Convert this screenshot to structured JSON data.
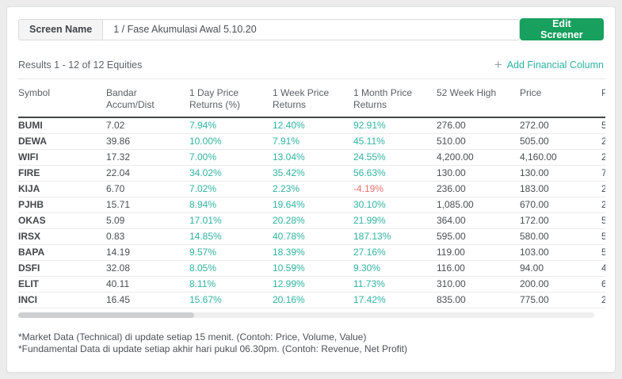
{
  "screener": {
    "label": "Screen Name",
    "value": "1 / Fase Akumulasi Awal 5.10.20",
    "edit_button_label": "Edit Screener"
  },
  "results": {
    "summary": "Results 1 - 12 of 12 Equities",
    "add_column_icon": "+",
    "add_column_label": "Add Financial Column"
  },
  "table": {
    "columns": [
      "Symbol",
      "Bandar Accum/Dist",
      "1 Day Price Returns (%)",
      "1 Week Price Returns",
      "1 Month Price Returns",
      "52 Week High",
      "Price",
      "P"
    ],
    "rows": [
      [
        "BUMI",
        "7.02",
        "7.94%",
        "12.40%",
        "92.91%",
        "276.00",
        "272.00",
        "5"
      ],
      [
        "DEWA",
        "39.86",
        "10.00%",
        "7.91%",
        "45.11%",
        "510.00",
        "505.00",
        "2"
      ],
      [
        "WIFI",
        "17.32",
        "7.00%",
        "13.04%",
        "24.55%",
        "4,200.00",
        "4,160.00",
        "2"
      ],
      [
        "FIRE",
        "22.04",
        "34.02%",
        "35.42%",
        "56.63%",
        "130.00",
        "130.00",
        "7"
      ],
      [
        "KIJA",
        "6.70",
        "7.02%",
        "2.23%",
        "-4.19%",
        "236.00",
        "183.00",
        "2"
      ],
      [
        "PJHB",
        "15.71",
        "8.94%",
        "19.64%",
        "30.10%",
        "1,085.00",
        "670.00",
        "2"
      ],
      [
        "OKAS",
        "5.09",
        "17.01%",
        "20.28%",
        "21.99%",
        "364.00",
        "172.00",
        "5"
      ],
      [
        "IRSX",
        "0.83",
        "14.85%",
        "40.78%",
        "187.13%",
        "595.00",
        "580.00",
        "5"
      ],
      [
        "BAPA",
        "14.19",
        "9.57%",
        "18.39%",
        "27.16%",
        "119.00",
        "103.00",
        "5"
      ],
      [
        "DSFI",
        "32.08",
        "8.05%",
        "10.59%",
        "9.30%",
        "116.00",
        "94.00",
        "4"
      ],
      [
        "ELIT",
        "40.11",
        "8.11%",
        "12.99%",
        "11.73%",
        "310.00",
        "200.00",
        "6"
      ],
      [
        "INCI",
        "16.45",
        "15.67%",
        "20.16%",
        "17.42%",
        "835.00",
        "775.00",
        "2"
      ]
    ]
  },
  "footnotes": [
    "*Market Data (Technical) di update setiap 15 menit. (Contoh: Price, Volume, Value)",
    "*Fundamental Data di update setiap akhir hari pukul 06.30pm. (Contoh: Revenue, Net Profit)"
  ],
  "colors": {
    "accent_green": "#17a05e",
    "positive": "#2fb3a2",
    "negative": "#f0706e"
  }
}
